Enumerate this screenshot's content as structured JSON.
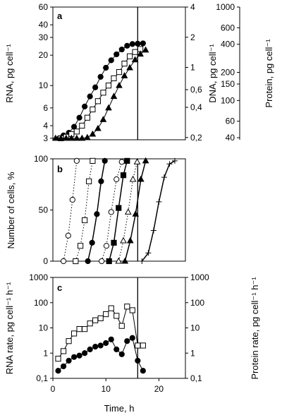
{
  "chart_data": [
    {
      "panel": "a",
      "type": "scatter",
      "ylabel_left": "RNA, pg cell⁻¹",
      "ylabel_right_1": "DNA, pg  cell⁻¹",
      "ylabel_right_2": "Protein, pg cell⁻¹",
      "xlim": [
        0,
        25
      ],
      "ylim_left": [
        2.9,
        60
      ],
      "ylog": true,
      "left_ticks": [
        "60",
        "40",
        "30",
        "20",
        "10",
        "6",
        "4",
        "3"
      ],
      "left_tick_values": [
        60,
        40,
        30,
        20,
        10,
        6,
        4,
        3
      ],
      "right1_ticks": [
        "4",
        "2",
        "1",
        "0,6",
        "0,4",
        "0,2"
      ],
      "right1_tick_values": [
        4,
        2,
        1,
        0.6,
        0.4,
        0.2
      ],
      "right2_ticks": [
        "1000",
        "600",
        "400",
        "200",
        "150",
        "100",
        "60",
        "40"
      ],
      "right2_tick_values": [
        1000,
        600,
        400,
        200,
        150,
        100,
        60,
        40
      ],
      "vline_x": 16,
      "series": [
        {
          "marker": "filled-circle",
          "x": [
            1.2,
            2.0,
            3.0,
            4.0,
            5.0,
            6.0,
            7.0,
            8.0,
            9.0,
            10.0,
            11.0,
            12.0,
            13.0,
            14.0,
            15.0,
            16.0,
            17.0
          ],
          "y": [
            3.0,
            3.2,
            3.4,
            3.9,
            4.8,
            6.2,
            7.8,
            9.6,
            12.2,
            15.0,
            17.8,
            20.4,
            22.8,
            24.8,
            25.8,
            26.0,
            26.2
          ]
        },
        {
          "marker": "open-square",
          "x": [
            1.5,
            2.5,
            3.5,
            4.5,
            5.5,
            6.5,
            7.5,
            8.5,
            9.5,
            10.5,
            11.5,
            12.5,
            13.5,
            14.5,
            15.5,
            16.5
          ],
          "y": [
            3.0,
            3.1,
            3.3,
            3.5,
            4.0,
            4.8,
            5.8,
            7.0,
            8.5,
            10.0,
            11.8,
            13.6,
            16.5,
            19.5,
            21.5,
            23.0
          ]
        },
        {
          "marker": "filled-triangle",
          "x": [
            0.5,
            1.5,
            2.5,
            3.5,
            4.5,
            5.5,
            6.5,
            7.5,
            8.5,
            9.5,
            10.5,
            11.5,
            12.5,
            13.5,
            14.5,
            15.5,
            16.5,
            17.5
          ],
          "y": [
            3.0,
            3.0,
            3.0,
            3.0,
            3.0,
            3.0,
            3.05,
            3.3,
            3.75,
            4.6,
            6.0,
            7.8,
            10.0,
            12.5,
            15.0,
            18.0,
            20.5,
            22.5
          ]
        }
      ]
    },
    {
      "panel": "b",
      "type": "line",
      "ylabel": "Number of cells, %",
      "xlim": [
        0,
        25
      ],
      "ylim": [
        0,
        100
      ],
      "y_ticks": [
        "100",
        "50",
        "0"
      ],
      "y_tick_values": [
        100,
        50,
        0
      ],
      "vline_x": 16,
      "series": [
        {
          "marker": "open-circle",
          "style": "dotted",
          "x": [
            2,
            2.9,
            3.7,
            4.5
          ],
          "y": [
            0,
            25,
            60,
            98
          ]
        },
        {
          "marker": "open-square",
          "style": "dotted",
          "x": [
            4.3,
            5.2,
            6.0,
            6.8,
            7.5
          ],
          "y": [
            0,
            15,
            40,
            78,
            98
          ]
        },
        {
          "marker": "filled-circle",
          "style": "solid",
          "x": [
            6.6,
            7.4,
            8.3,
            9.1,
            9.8
          ],
          "y": [
            0,
            18,
            46,
            78,
            98
          ]
        },
        {
          "marker": "open-circle",
          "style": "dotted",
          "x": [
            9.2,
            10.1,
            11.0,
            12.0,
            13.0
          ],
          "y": [
            0,
            15,
            48,
            80,
            97
          ]
        },
        {
          "marker": "filled-square",
          "style": "solid",
          "x": [
            10.6,
            11.5,
            12.4,
            13.3,
            14.0
          ],
          "y": [
            0,
            18,
            52,
            84,
            98
          ]
        },
        {
          "marker": "open-triangle",
          "style": "dotted",
          "x": [
            12.4,
            13.3,
            14.2,
            15.1,
            15.9
          ],
          "y": [
            0,
            20,
            48,
            80,
            97
          ]
        },
        {
          "marker": "filled-triangle",
          "style": "solid",
          "x": [
            13.6,
            14.6,
            15.6,
            16.6,
            17.5
          ],
          "y": [
            0,
            20,
            46,
            80,
            98
          ]
        },
        {
          "marker": "plus",
          "style": "solid",
          "x": [
            16.8,
            18.0,
            19.0,
            20.0,
            21.0,
            22.0,
            23.0
          ],
          "y": [
            0,
            8,
            30,
            58,
            82,
            95,
            98
          ]
        }
      ]
    },
    {
      "panel": "c",
      "type": "line",
      "xlabel": "Time, h",
      "ylabel_left": "RNA rate, pg  cell⁻¹  h⁻¹",
      "ylabel_right": "Protein rate, pg  cell⁻¹  h⁻¹",
      "xlim": [
        0,
        25
      ],
      "ylim": [
        0.1,
        1000
      ],
      "ylog": true,
      "x_ticks": [
        "0",
        "10",
        "20"
      ],
      "x_tick_values": [
        0,
        10,
        20
      ],
      "left_ticks": [
        "1000",
        "100",
        "10",
        "1",
        "0,1"
      ],
      "left_tick_values": [
        1000,
        100,
        10,
        1,
        0.1
      ],
      "right_ticks": [
        "1000",
        "100",
        "10",
        "1",
        "0,1"
      ],
      "right_tick_values": [
        1000,
        100,
        10,
        1,
        0.1
      ],
      "vline_x": 16,
      "series": [
        {
          "marker": "open-square",
          "x": [
            1,
            2,
            3,
            4,
            5,
            6,
            7,
            8,
            9,
            10,
            11,
            12,
            13,
            14,
            15,
            16,
            17
          ],
          "y": [
            0.6,
            1.2,
            3,
            6,
            9,
            9,
            15,
            20,
            24,
            35,
            60,
            30,
            12,
            70,
            50,
            2,
            2
          ]
        },
        {
          "marker": "filled-circle",
          "x": [
            1,
            2,
            3,
            4,
            5,
            6,
            7,
            8,
            9,
            10,
            11,
            12,
            13,
            14,
            15,
            16,
            17
          ],
          "y": [
            0.2,
            0.3,
            0.5,
            0.7,
            0.8,
            1.0,
            1.4,
            1.8,
            2.0,
            2.5,
            3.5,
            1.4,
            0.9,
            3.0,
            4.0,
            0.5,
            0.2
          ]
        }
      ]
    }
  ]
}
